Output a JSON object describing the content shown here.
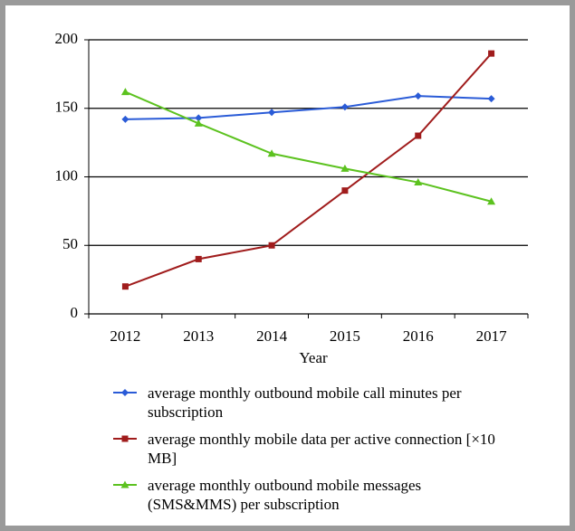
{
  "chart_data": {
    "type": "line",
    "x_label": "Year",
    "categories": [
      "2012",
      "2013",
      "2014",
      "2015",
      "2016",
      "2017"
    ],
    "series": [
      {
        "name": "average monthly outbound mobile call minutes per subscription",
        "color": "#2a5bd7",
        "marker": "diamond",
        "values": [
          142,
          143,
          147,
          151,
          159,
          157
        ]
      },
      {
        "name": "average monthly mobile data per active connection [×10 MB]",
        "color": "#a01c1c",
        "marker": "square",
        "values": [
          20,
          40,
          50,
          90,
          130,
          190
        ]
      },
      {
        "name": "average monthly outbound mobile messages (SMS&MMS) per subscription",
        "color": "#5cc21f",
        "marker": "triangle",
        "values": [
          162,
          139,
          117,
          106,
          96,
          82
        ]
      }
    ],
    "ylim": [
      0,
      200
    ],
    "yticks": [
      0,
      50,
      100,
      150,
      200
    ],
    "grid": true,
    "legend": "bottom"
  }
}
